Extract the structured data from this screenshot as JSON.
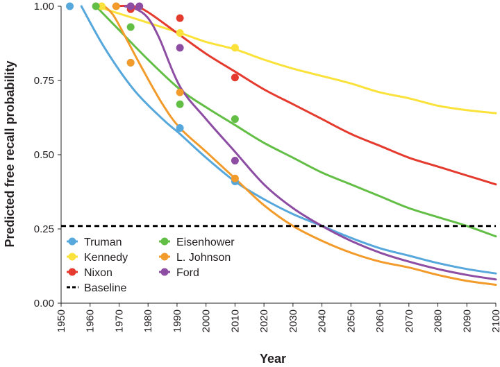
{
  "chart_data": {
    "type": "line",
    "title": "",
    "xlabel": "Year",
    "ylabel": "Predicted free recall probability",
    "xlim": [
      1950,
      2100
    ],
    "ylim": [
      0,
      1
    ],
    "xticks": [
      "1950",
      "1960",
      "1970",
      "1980",
      "1990",
      "2000",
      "2010",
      "2020",
      "2030",
      "2040",
      "2050",
      "2060",
      "2070",
      "2080",
      "2090",
      "2100"
    ],
    "yticks": [
      "0.00",
      "0.25",
      "0.50",
      "0.75",
      "1.00"
    ],
    "baseline": {
      "name": "Baseline",
      "value": 0.26,
      "color": "#000000"
    },
    "legend": {
      "placement": "bottom-left"
    },
    "series": [
      {
        "name": "Truman",
        "color": "#55a7dc",
        "points": [
          [
            1953,
            1.0
          ],
          [
            1974,
            0.81
          ],
          [
            1991,
            0.59
          ],
          [
            2010,
            0.41
          ]
        ],
        "curve": [
          [
            1957,
            1.0
          ],
          [
            1965,
            0.86
          ],
          [
            1975,
            0.72
          ],
          [
            1985,
            0.62
          ],
          [
            1991,
            0.57
          ],
          [
            2000,
            0.49
          ],
          [
            2010,
            0.41
          ],
          [
            2020,
            0.35
          ],
          [
            2030,
            0.3
          ],
          [
            2040,
            0.26
          ],
          [
            2050,
            0.22
          ],
          [
            2060,
            0.185
          ],
          [
            2070,
            0.16
          ],
          [
            2080,
            0.135
          ],
          [
            2090,
            0.115
          ],
          [
            2100,
            0.1
          ]
        ]
      },
      {
        "name": "Kennedy",
        "color": "#fbe23b",
        "points": [
          [
            1964,
            1.0
          ],
          [
            1991,
            0.91
          ],
          [
            2010,
            0.86
          ]
        ],
        "curve": [
          [
            1962,
            1.0
          ],
          [
            1975,
            0.96
          ],
          [
            1991,
            0.91
          ],
          [
            2000,
            0.88
          ],
          [
            2010,
            0.855
          ],
          [
            2020,
            0.82
          ],
          [
            2030,
            0.79
          ],
          [
            2040,
            0.765
          ],
          [
            2050,
            0.74
          ],
          [
            2060,
            0.71
          ],
          [
            2070,
            0.69
          ],
          [
            2080,
            0.665
          ],
          [
            2090,
            0.65
          ],
          [
            2100,
            0.64
          ]
        ]
      },
      {
        "name": "Nixon",
        "color": "#e53a2e",
        "points": [
          [
            1974,
            0.99
          ],
          [
            1991,
            0.96
          ],
          [
            2010,
            0.76
          ]
        ],
        "curve": [
          [
            1968,
            1.0
          ],
          [
            1975,
            1.0
          ],
          [
            1980,
            0.98
          ],
          [
            1990,
            0.91
          ],
          [
            2000,
            0.84
          ],
          [
            2010,
            0.78
          ],
          [
            2020,
            0.72
          ],
          [
            2030,
            0.67
          ],
          [
            2040,
            0.62
          ],
          [
            2050,
            0.57
          ],
          [
            2060,
            0.53
          ],
          [
            2070,
            0.49
          ],
          [
            2080,
            0.46
          ],
          [
            2090,
            0.43
          ],
          [
            2100,
            0.4
          ]
        ]
      },
      {
        "name": "Eisenhower",
        "color": "#62be45",
        "points": [
          [
            1962,
            1.0
          ],
          [
            1974,
            0.93
          ],
          [
            1991,
            0.67
          ],
          [
            2010,
            0.62
          ]
        ],
        "curve": [
          [
            1962,
            1.0
          ],
          [
            1970,
            0.92
          ],
          [
            1980,
            0.82
          ],
          [
            1991,
            0.72
          ],
          [
            2000,
            0.66
          ],
          [
            2010,
            0.6
          ],
          [
            2020,
            0.54
          ],
          [
            2030,
            0.49
          ],
          [
            2040,
            0.44
          ],
          [
            2050,
            0.4
          ],
          [
            2060,
            0.36
          ],
          [
            2070,
            0.32
          ],
          [
            2080,
            0.29
          ],
          [
            2090,
            0.26
          ],
          [
            2100,
            0.225
          ]
        ]
      },
      {
        "name": "L. Johnson",
        "color": "#f39b2a",
        "points": [
          [
            1969,
            1.0
          ],
          [
            1974,
            0.81
          ],
          [
            1991,
            0.71
          ],
          [
            2010,
            0.42
          ]
        ],
        "curve": [
          [
            1965,
            1.0
          ],
          [
            1968,
            0.97
          ],
          [
            1972,
            0.9
          ],
          [
            1978,
            0.79
          ],
          [
            1985,
            0.67
          ],
          [
            1991,
            0.59
          ],
          [
            2000,
            0.51
          ],
          [
            2010,
            0.42
          ],
          [
            2020,
            0.33
          ],
          [
            2030,
            0.26
          ],
          [
            2040,
            0.21
          ],
          [
            2050,
            0.17
          ],
          [
            2060,
            0.14
          ],
          [
            2070,
            0.12
          ],
          [
            2080,
            0.095
          ],
          [
            2090,
            0.075
          ],
          [
            2100,
            0.062
          ]
        ]
      },
      {
        "name": "Ford",
        "color": "#8c4da3",
        "points": [
          [
            1974,
            1.0
          ],
          [
            1977,
            1.0
          ],
          [
            1991,
            0.86
          ],
          [
            2010,
            0.48
          ]
        ],
        "curve": [
          [
            1972,
            1.0
          ],
          [
            1976,
            0.99
          ],
          [
            1980,
            0.96
          ],
          [
            1984,
            0.89
          ],
          [
            1991,
            0.73
          ],
          [
            2000,
            0.62
          ],
          [
            2010,
            0.51
          ],
          [
            2020,
            0.4
          ],
          [
            2030,
            0.32
          ],
          [
            2040,
            0.26
          ],
          [
            2050,
            0.21
          ],
          [
            2060,
            0.17
          ],
          [
            2070,
            0.14
          ],
          [
            2080,
            0.115
          ],
          [
            2090,
            0.095
          ],
          [
            2100,
            0.08
          ]
        ]
      }
    ]
  }
}
